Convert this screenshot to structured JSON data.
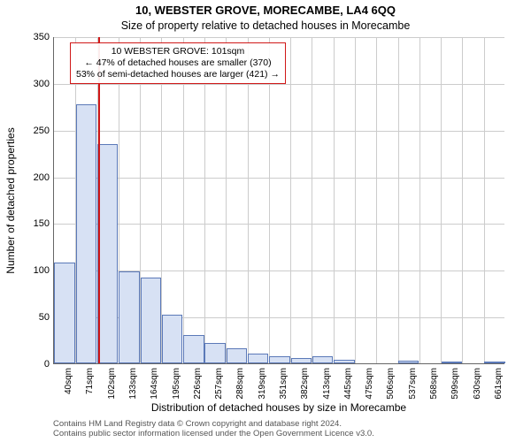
{
  "title_line1": "10, WEBSTER GROVE, MORECAMBE, LA4 6QQ",
  "title_line2": "Size of property relative to detached houses in Morecambe",
  "ylabel": "Number of detached properties",
  "xlabel": "Distribution of detached houses by size in Morecambe",
  "footer_line1": "Contains HM Land Registry data © Crown copyright and database right 2024.",
  "footer_line2": "Contains public sector information licensed under the Open Government Licence v3.0.",
  "chart": {
    "type": "histogram",
    "background_color": "#ffffff",
    "grid_color": "#cccccc",
    "axis_color": "#666666",
    "bar_fill": "#d7e1f4",
    "bar_border": "#5b79b8",
    "marker_color": "#d01818",
    "annotation_border": "#d01818",
    "ylim": [
      0,
      350
    ],
    "ytick_step": 50,
    "yticks": [
      0,
      50,
      100,
      150,
      200,
      250,
      300,
      350
    ],
    "xtick_labels": [
      "40sqm",
      "71sqm",
      "102sqm",
      "133sqm",
      "164sqm",
      "195sqm",
      "226sqm",
      "257sqm",
      "288sqm",
      "319sqm",
      "351sqm",
      "382sqm",
      "413sqm",
      "445sqm",
      "475sqm",
      "506sqm",
      "537sqm",
      "568sqm",
      "599sqm",
      "630sqm",
      "661sqm"
    ],
    "bar_values": [
      108,
      277,
      235,
      98,
      92,
      52,
      30,
      22,
      16,
      10,
      8,
      6,
      8,
      4,
      0,
      0,
      3,
      0,
      2,
      0,
      1
    ],
    "bar_width_ratio": 0.96,
    "marker_x_ratio": 0.098,
    "title_fontsize": 13,
    "subtitle_fontsize": 12.5,
    "label_fontsize": 12,
    "tick_fontsize": 11,
    "xtick_fontsize": 10,
    "annotation_fontsize": 10.5
  },
  "annotation": {
    "line1": "10 WEBSTER GROVE: 101sqm",
    "line2": "← 47% of detached houses are smaller (370)",
    "line3": "53% of semi-detached houses are larger (421) →"
  }
}
